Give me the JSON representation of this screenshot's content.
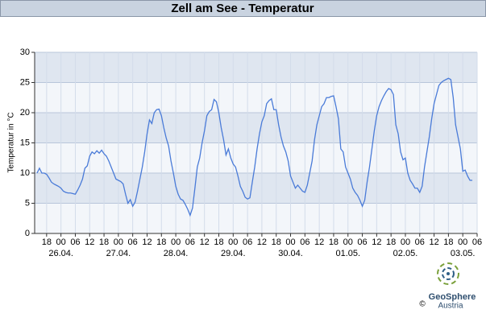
{
  "chart_data": {
    "type": "line",
    "title": "Zell am See - Temperatur",
    "y_label": "Temperatur in °C",
    "x": [
      "25.04. 14",
      "25.04. 15",
      "25.04. 16",
      "25.04. 17",
      "25.04. 18",
      "25.04. 19",
      "25.04. 20",
      "25.04. 21",
      "25.04. 22",
      "25.04. 23",
      "26.04. 00",
      "26.04. 01",
      "26.04. 02",
      "26.04. 03",
      "26.04. 04",
      "26.04. 05",
      "26.04. 06",
      "26.04. 07",
      "26.04. 08",
      "26.04. 09",
      "26.04. 10",
      "26.04. 11",
      "26.04. 12",
      "26.04. 13",
      "26.04. 14",
      "26.04. 15",
      "26.04. 16",
      "26.04. 17",
      "26.04. 18",
      "26.04. 19",
      "26.04. 20",
      "26.04. 21",
      "26.04. 22",
      "26.04. 23",
      "27.04. 00",
      "27.04. 01",
      "27.04. 02",
      "27.04. 03",
      "27.04. 04",
      "27.04. 05",
      "27.04. 06",
      "27.04. 07",
      "27.04. 08",
      "27.04. 09",
      "27.04. 10",
      "27.04. 11",
      "27.04. 12",
      "27.04. 13",
      "27.04. 14",
      "27.04. 15",
      "27.04. 16",
      "27.04. 17",
      "27.04. 18",
      "27.04. 19",
      "27.04. 20",
      "27.04. 21",
      "27.04. 22",
      "27.04. 23",
      "28.04. 00",
      "28.04. 01",
      "28.04. 02",
      "28.04. 03",
      "28.04. 04",
      "28.04. 05",
      "28.04. 06",
      "28.04. 07",
      "28.04. 08",
      "28.04. 09",
      "28.04. 10",
      "28.04. 11",
      "28.04. 12",
      "28.04. 13",
      "28.04. 14",
      "28.04. 15",
      "28.04. 16",
      "28.04. 17",
      "28.04. 18",
      "28.04. 19",
      "28.04. 20",
      "28.04. 21",
      "28.04. 22",
      "28.04. 23",
      "29.04. 00",
      "29.04. 01",
      "29.04. 02",
      "29.04. 03",
      "29.04. 04",
      "29.04. 05",
      "29.04. 06",
      "29.04. 07",
      "29.04. 08",
      "29.04. 09",
      "29.04. 10",
      "29.04. 11",
      "29.04. 12",
      "29.04. 13",
      "29.04. 14",
      "29.04. 15",
      "29.04. 16",
      "29.04. 17",
      "29.04. 18",
      "29.04. 19",
      "29.04. 20",
      "29.04. 21",
      "29.04. 22",
      "29.04. 23",
      "30.04. 00",
      "30.04. 01",
      "30.04. 02",
      "30.04. 03",
      "30.04. 04",
      "30.04. 05",
      "30.04. 06",
      "30.04. 07",
      "30.04. 08",
      "30.04. 09",
      "30.04. 10",
      "30.04. 11",
      "30.04. 12",
      "30.04. 13",
      "30.04. 14",
      "30.04. 15",
      "30.04. 16",
      "30.04. 17",
      "30.04. 18",
      "30.04. 19",
      "30.04. 20",
      "30.04. 21",
      "30.04. 22",
      "30.04. 23",
      "01.05. 00",
      "01.05. 01",
      "01.05. 02",
      "01.05. 03",
      "01.05. 04",
      "01.05. 05",
      "01.05. 06",
      "01.05. 07",
      "01.05. 08",
      "01.05. 09",
      "01.05. 10",
      "01.05. 11",
      "01.05. 12",
      "01.05. 13",
      "01.05. 14",
      "01.05. 15",
      "01.05. 16",
      "01.05. 17",
      "01.05. 18",
      "01.05. 19",
      "01.05. 20",
      "01.05. 21",
      "01.05. 22",
      "01.05. 23",
      "02.05. 00",
      "02.05. 01",
      "02.05. 02",
      "02.05. 03",
      "02.05. 04",
      "02.05. 05",
      "02.05. 06",
      "02.05. 07",
      "02.05. 08",
      "02.05. 09",
      "02.05. 10",
      "02.05. 11",
      "02.05. 12",
      "02.05. 13",
      "02.05. 14",
      "02.05. 15",
      "02.05. 16",
      "02.05. 17",
      "02.05. 18",
      "02.05. 19",
      "02.05. 20",
      "02.05. 21",
      "02.05. 22",
      "02.05. 23",
      "03.05. 00",
      "03.05. 01",
      "03.05. 02",
      "03.05. 03",
      "03.05. 04"
    ],
    "series": [
      {
        "color": "#4a7bd8",
        "values": [
          10.0,
          10.8,
          10.0,
          10.0,
          9.8,
          9.2,
          8.5,
          8.2,
          8.0,
          7.8,
          7.5,
          7.0,
          6.8,
          6.7,
          6.7,
          6.6,
          6.5,
          7.2,
          8.0,
          9.0,
          10.8,
          11.2,
          12.8,
          13.5,
          13.2,
          13.7,
          13.3,
          13.8,
          13.2,
          12.8,
          12.0,
          11.0,
          10.0,
          9.0,
          8.8,
          8.6,
          8.2,
          6.5,
          5.0,
          5.6,
          4.5,
          5.2,
          7.0,
          9.0,
          11.0,
          13.5,
          16.5,
          18.8,
          18.2,
          20.0,
          20.5,
          20.6,
          19.5,
          17.5,
          15.8,
          14.5,
          12.0,
          10.0,
          7.8,
          6.5,
          5.7,
          5.5,
          4.8,
          4.0,
          3.0,
          4.2,
          7.5,
          11.0,
          12.5,
          15.0,
          17.0,
          19.5,
          20.2,
          20.5,
          22.2,
          21.8,
          20.0,
          17.5,
          15.5,
          13.0,
          14.0,
          12.5,
          11.5,
          11.0,
          9.5,
          7.8,
          7.0,
          6.0,
          5.7,
          5.9,
          8.5,
          11.0,
          14.0,
          16.5,
          18.5,
          19.5,
          21.5,
          22.0,
          22.3,
          20.5,
          20.5,
          18.0,
          16.0,
          14.5,
          13.5,
          12.0,
          9.5,
          8.5,
          7.5,
          8.0,
          7.5,
          7.0,
          6.8,
          8.0,
          10.0,
          12.0,
          15.5,
          18.0,
          19.5,
          21.0,
          21.5,
          22.5,
          22.5,
          22.7,
          22.8,
          21.0,
          19.0,
          14.0,
          13.5,
          11.0,
          10.0,
          9.0,
          7.5,
          6.8,
          6.3,
          5.5,
          4.5,
          5.5,
          8.5,
          11.0,
          14.0,
          17.0,
          19.5,
          21.0,
          22.0,
          22.8,
          23.5,
          24.0,
          23.8,
          23.0,
          18.0,
          16.5,
          13.5,
          12.2,
          12.5,
          10.0,
          8.8,
          8.2,
          7.5,
          7.5,
          6.8,
          7.8,
          11.0,
          13.5,
          16.0,
          19.0,
          21.5,
          23.0,
          24.5,
          25.0,
          25.3,
          25.5,
          25.7,
          25.5,
          22.5,
          18.0,
          16.0,
          14.0,
          10.3,
          10.5,
          9.5,
          8.8,
          8.8
        ]
      }
    ],
    "xlim": [
      "25.04. 13",
      "03.05. 06"
    ],
    "xticks": [
      {
        "value": "25.04. 18",
        "label": "18"
      },
      {
        "value": "26.04. 00",
        "label": "00"
      },
      {
        "value": "26.04. 06",
        "label": "06"
      },
      {
        "value": "26.04. 12",
        "label": "12"
      },
      {
        "value": "26.04. 18",
        "label": "18"
      },
      {
        "value": "27.04. 00",
        "label": "00"
      },
      {
        "value": "27.04. 06",
        "label": "06"
      },
      {
        "value": "27.04. 12",
        "label": "12"
      },
      {
        "value": "27.04. 18",
        "label": "18"
      },
      {
        "value": "28.04. 00",
        "label": "00"
      },
      {
        "value": "28.04. 06",
        "label": "06"
      },
      {
        "value": "28.04. 12",
        "label": "12"
      },
      {
        "value": "28.04. 18",
        "label": "18"
      },
      {
        "value": "29.04. 00",
        "label": "00"
      },
      {
        "value": "29.04. 06",
        "label": "06"
      },
      {
        "value": "29.04. 12",
        "label": "12"
      },
      {
        "value": "29.04. 18",
        "label": "18"
      },
      {
        "value": "30.04. 00",
        "label": "00"
      },
      {
        "value": "30.04. 06",
        "label": "06"
      },
      {
        "value": "30.04. 12",
        "label": "12"
      },
      {
        "value": "30.04. 18",
        "label": "18"
      },
      {
        "value": "01.05. 00",
        "label": "00"
      },
      {
        "value": "01.05. 06",
        "label": "06"
      },
      {
        "value": "01.05. 12",
        "label": "12"
      },
      {
        "value": "01.05. 18",
        "label": "18"
      },
      {
        "value": "02.05. 00",
        "label": "00"
      },
      {
        "value": "02.05. 06",
        "label": "06"
      },
      {
        "value": "02.05. 12",
        "label": "12"
      },
      {
        "value": "02.05. 18",
        "label": "18"
      },
      {
        "value": "03.05. 00",
        "label": "00"
      },
      {
        "value": "03.05. 06",
        "label": "06"
      }
    ],
    "x_date_ticks": [
      {
        "value": "26.04. 00",
        "label": "26.04."
      },
      {
        "value": "27.04. 00",
        "label": "27.04."
      },
      {
        "value": "28.04. 00",
        "label": "28.04."
      },
      {
        "value": "29.04. 00",
        "label": "29.04."
      },
      {
        "value": "30.04. 00",
        "label": "30.04."
      },
      {
        "value": "01.05. 00",
        "label": "01.05."
      },
      {
        "value": "02.05. 00",
        "label": "02.05."
      },
      {
        "value": "03.05. 00",
        "label": "03.05."
      }
    ],
    "ylim": [
      0,
      30
    ],
    "yticks": [
      0,
      5,
      10,
      15,
      20,
      25,
      30
    ],
    "grid": true
  },
  "logo": {
    "name": "GeoSphere",
    "subtitle": "Austria",
    "copyright": "©"
  }
}
